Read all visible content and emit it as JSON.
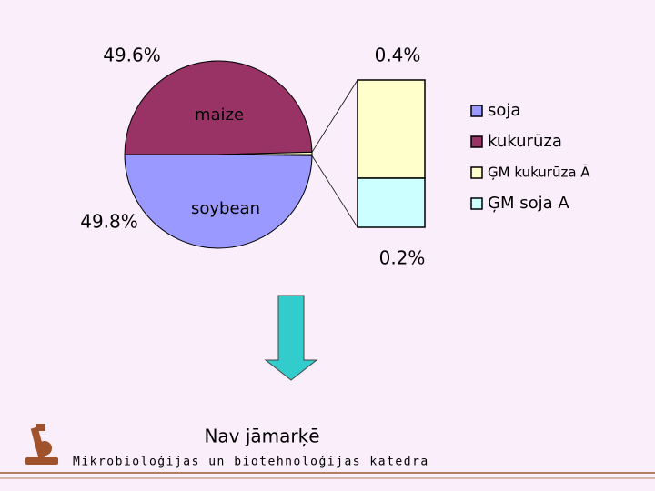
{
  "chart_data": {
    "type": "pie-of-bar",
    "categories": [
      "soja",
      "kukurūza",
      "ĢM kukurūza Ā",
      "ĢM soja A"
    ],
    "values": [
      49.8,
      49.6,
      0.4,
      0.2
    ],
    "value_labels": [
      "49.8%",
      "49.6%",
      "0.4%",
      "0.2%"
    ],
    "colors": [
      "#9999ff",
      "#993366",
      "#ffffcc",
      "#ccffff"
    ],
    "annotations": [
      "maize",
      "soybean"
    ]
  },
  "arrow_caption": "Nav jāmarķē",
  "footer": "Mikrobioloģijas un biotehnoloģijas katedra"
}
